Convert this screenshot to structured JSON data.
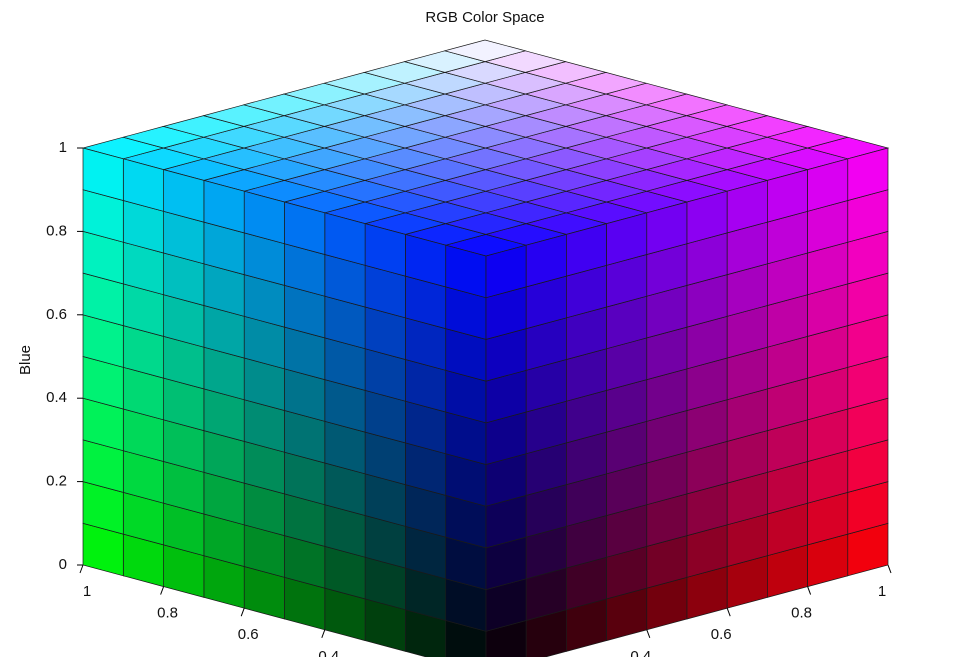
{
  "chart_data": {
    "type": "rgb-cube",
    "title": "RGB Color Space",
    "zlabel": "Blue",
    "xlim": [
      0,
      1
    ],
    "xticks": [
      0.4,
      0.6,
      0.8,
      1
    ],
    "ylim": [
      0,
      1
    ],
    "yticks": [
      0.4,
      0.6,
      0.8,
      1
    ],
    "zlim": [
      0,
      1
    ],
    "zticks": [
      0,
      0.2,
      0.4,
      0.6,
      0.8,
      1
    ]
  }
}
